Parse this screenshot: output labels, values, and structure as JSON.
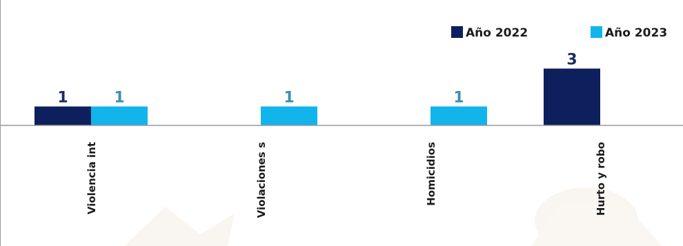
{
  "chart_data": {
    "type": "bar",
    "categories": [
      "Violencia int",
      "Violaciones s",
      "Homicidios",
      "Hurto y robo"
    ],
    "series": [
      {
        "name": "Año 2022",
        "color": "#0d1f5c",
        "values": [
          1,
          null,
          null,
          3
        ]
      },
      {
        "name": "Año 2023",
        "color": "#12b4ec",
        "values": [
          1,
          1,
          1,
          null
        ]
      }
    ],
    "value_labels": true,
    "label_colors": {
      "Año 2022": "#1c2e5e",
      "Año 2023": "#3b8fb3"
    },
    "legend_position": "top-right",
    "grid": false,
    "ylim": [
      0,
      3
    ]
  }
}
